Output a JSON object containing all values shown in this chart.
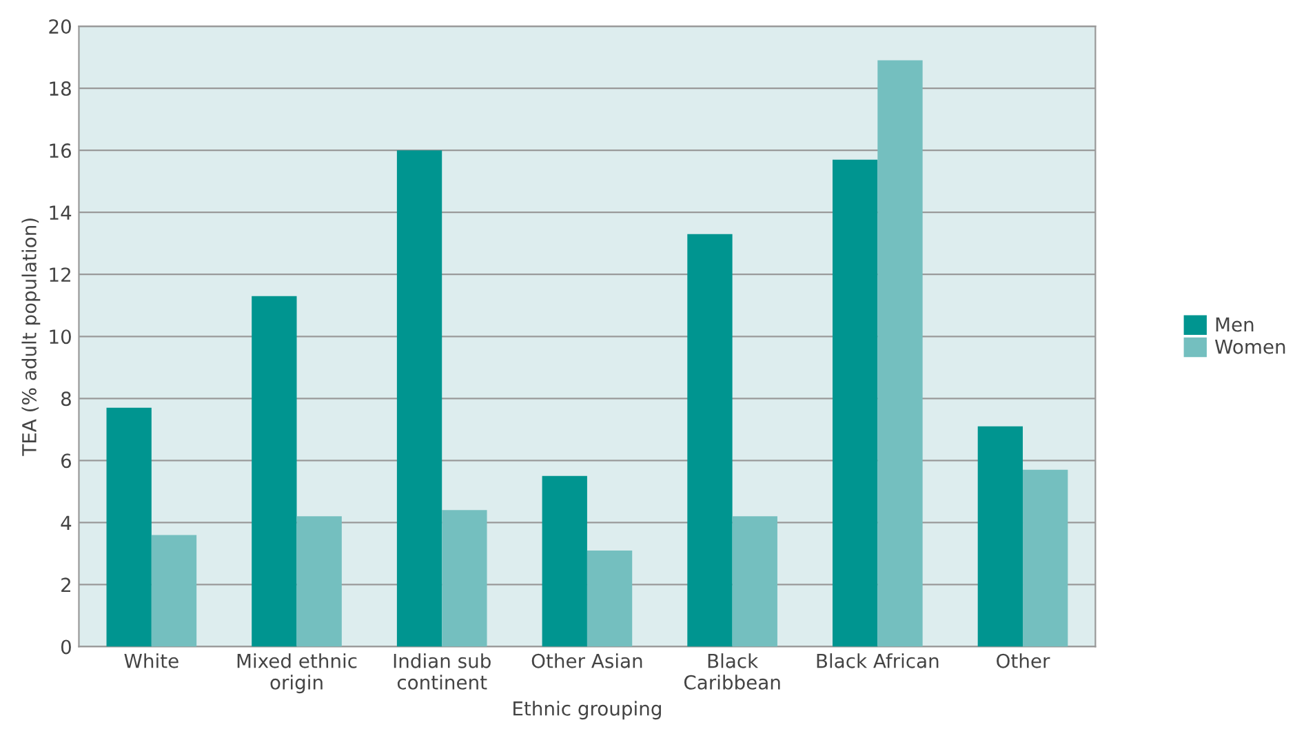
{
  "chart_data": {
    "type": "bar",
    "xlabel": "Ethnic grouping",
    "ylabel": "TEA (% adult population)",
    "categories": [
      "White",
      "Mixed ethnic\norigin",
      "Indian sub\ncontinent",
      "Other Asian",
      "Black\nCaribbean",
      "Black African",
      "Other"
    ],
    "series": [
      {
        "name": "Men",
        "color": "#009590",
        "values": [
          7.7,
          11.3,
          16.0,
          5.5,
          13.3,
          15.7,
          7.1
        ]
      },
      {
        "name": "Women",
        "color": "#74bfbf",
        "values": [
          3.6,
          4.2,
          4.4,
          3.1,
          4.2,
          18.9,
          5.7
        ]
      }
    ],
    "ylim": [
      0,
      20
    ],
    "yticks": [
      0,
      2,
      4,
      6,
      8,
      10,
      12,
      14,
      16,
      18,
      20
    ],
    "grid": "y",
    "legend": "right"
  }
}
